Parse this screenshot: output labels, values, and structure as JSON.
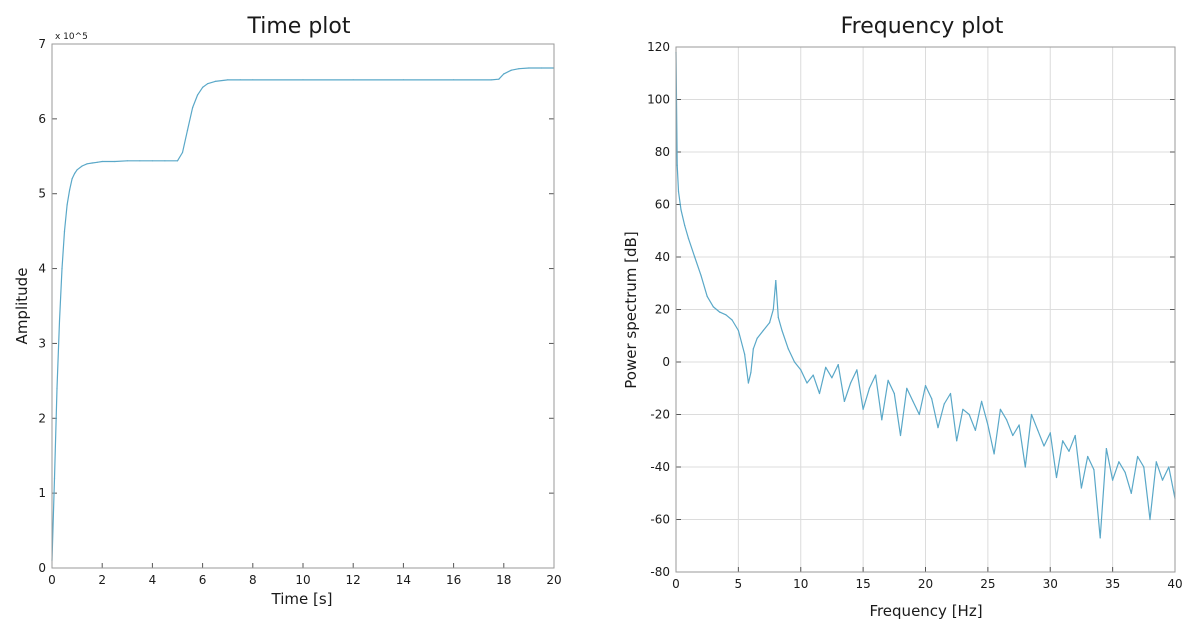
{
  "chart_data": [
    {
      "type": "line",
      "title": "Time plot",
      "xlabel": "Time [s]",
      "ylabel": "Amplitude",
      "y_multiplier": "x 10^5",
      "xlim": [
        0,
        20
      ],
      "ylim": [
        0,
        7
      ],
      "xticks": [
        0,
        2,
        4,
        6,
        8,
        10,
        12,
        14,
        16,
        18,
        20
      ],
      "yticks": [
        0,
        1,
        2,
        3,
        4,
        5,
        6,
        7
      ],
      "grid": false,
      "line_color": "#5aa8c8",
      "series": [
        {
          "x": [
            0,
            0.1,
            0.2,
            0.3,
            0.4,
            0.5,
            0.6,
            0.7,
            0.8,
            0.9,
            1.0,
            1.2,
            1.4,
            1.6,
            1.8,
            2.0,
            2.5,
            3.0,
            3.5,
            4.0,
            4.5,
            5.0,
            5.2,
            5.4,
            5.6,
            5.8,
            6.0,
            6.2,
            6.5,
            7.0,
            7.5,
            8.0,
            10,
            12,
            14,
            16,
            17.5,
            17.8,
            18.0,
            18.3,
            18.6,
            19.0,
            19.5,
            20
          ],
          "y": [
            0.1,
            1.2,
            2.4,
            3.3,
            4.0,
            4.5,
            4.85,
            5.05,
            5.2,
            5.27,
            5.32,
            5.37,
            5.4,
            5.41,
            5.42,
            5.43,
            5.43,
            5.44,
            5.44,
            5.44,
            5.44,
            5.44,
            5.55,
            5.85,
            6.15,
            6.32,
            6.42,
            6.47,
            6.5,
            6.52,
            6.52,
            6.52,
            6.52,
            6.52,
            6.52,
            6.52,
            6.52,
            6.53,
            6.6,
            6.65,
            6.67,
            6.68,
            6.68,
            6.68
          ]
        }
      ]
    },
    {
      "type": "line",
      "title": "Frequency plot",
      "xlabel": "Frequency [Hz]",
      "ylabel": "Power spectrum [dB]",
      "xlim": [
        0,
        40
      ],
      "ylim": [
        -80,
        120
      ],
      "xticks": [
        0,
        5,
        10,
        15,
        20,
        25,
        30,
        35,
        40
      ],
      "yticks": [
        -80,
        -60,
        -40,
        -20,
        0,
        20,
        40,
        60,
        80,
        100,
        120
      ],
      "grid": true,
      "line_color": "#5aa8c8",
      "series": [
        {
          "x": [
            0,
            0.1,
            0.2,
            0.4,
            0.7,
            1.0,
            1.5,
            2.0,
            2.5,
            3.0,
            3.5,
            4.0,
            4.5,
            5.0,
            5.5,
            5.8,
            6.0,
            6.2,
            6.5,
            7.0,
            7.5,
            7.8,
            8.0,
            8.2,
            8.5,
            9.0,
            9.5,
            10.0,
            10.5,
            11.0,
            11.5,
            12.0,
            12.5,
            13.0,
            13.5,
            14.0,
            14.5,
            15.0,
            15.5,
            16.0,
            16.5,
            17.0,
            17.5,
            18.0,
            18.5,
            19.0,
            19.5,
            20.0,
            20.5,
            21.0,
            21.5,
            22.0,
            22.5,
            23.0,
            23.5,
            24.0,
            24.5,
            25.0,
            25.5,
            26.0,
            26.5,
            27.0,
            27.5,
            28.0,
            28.5,
            29.0,
            29.5,
            30.0,
            30.5,
            31.0,
            31.5,
            32.0,
            32.5,
            33.0,
            33.5,
            34.0,
            34.5,
            35.0,
            35.5,
            36.0,
            36.5,
            37.0,
            37.5,
            38.0,
            38.5,
            39.0,
            39.5,
            40.0
          ],
          "y": [
            118,
            75,
            65,
            58,
            52,
            47,
            40,
            33,
            25,
            21,
            19,
            18,
            16,
            12,
            3,
            -8,
            -4,
            5,
            9,
            12,
            15,
            20,
            31,
            17,
            12,
            5,
            0,
            -3,
            -8,
            -5,
            -12,
            -2,
            -6,
            -1,
            -15,
            -8,
            -3,
            -18,
            -10,
            -5,
            -22,
            -7,
            -12,
            -28,
            -10,
            -15,
            -20,
            -9,
            -14,
            -25,
            -16,
            -12,
            -30,
            -18,
            -20,
            -26,
            -15,
            -24,
            -35,
            -18,
            -22,
            -28,
            -24,
            -40,
            -20,
            -26,
            -32,
            -27,
            -44,
            -30,
            -34,
            -28,
            -48,
            -36,
            -41,
            -67,
            -33,
            -45,
            -38,
            -42,
            -50,
            -36,
            -40,
            -60,
            -38,
            -45,
            -40,
            -52
          ]
        }
      ]
    }
  ]
}
